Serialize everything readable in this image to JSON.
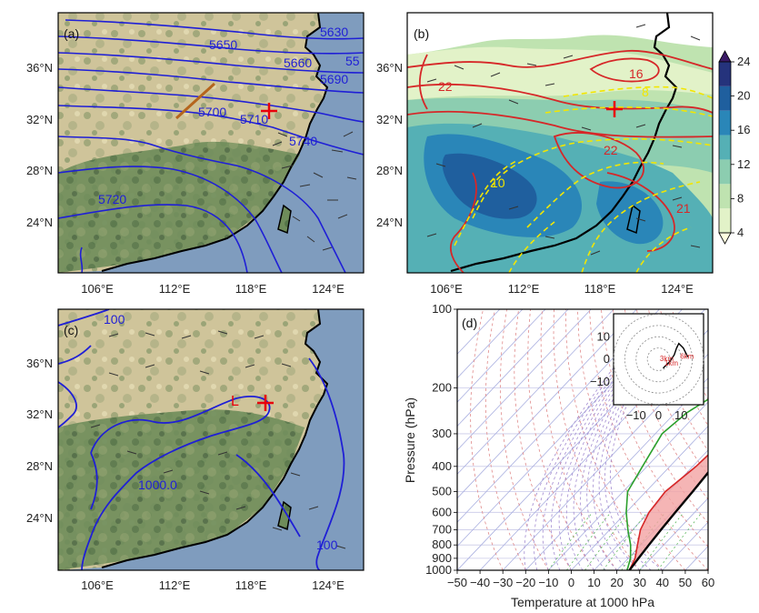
{
  "chart_data": [
    {
      "panel": "(a)",
      "type": "map",
      "lat_ticks": [
        "36°N",
        "32°N",
        "28°N",
        "24°N"
      ],
      "lon_ticks": [
        "106°E",
        "112°E",
        "118°E",
        "124°E"
      ],
      "contour_labels": [
        "5650",
        "5630",
        "5660",
        "5690",
        "5700",
        "5710",
        "5740",
        "5720",
        "55"
      ],
      "colors": {
        "contour": "#1f1fd6",
        "trough": "#b5651d",
        "marker": "#e8000b"
      }
    },
    {
      "panel": "(b)",
      "type": "map",
      "lat_ticks": [
        "36°N",
        "32°N",
        "28°N",
        "24°N"
      ],
      "lon_ticks": [
        "106°E",
        "112°E",
        "118°E",
        "124°E"
      ],
      "red_contour_labels": [
        "22",
        "16",
        "22",
        "21"
      ],
      "yellow_contour_labels": [
        "8",
        "10"
      ],
      "colorbar": {
        "ticks": [
          4,
          8,
          12,
          16,
          20,
          24
        ],
        "colors": [
          "#ffffe0",
          "#e2f2c8",
          "#bfe3b0",
          "#8ccdb0",
          "#55b0b5",
          "#2a86b8",
          "#1f5f9e",
          "#25337c",
          "#3a1a66"
        ]
      }
    },
    {
      "panel": "(c)",
      "type": "map",
      "lat_ticks": [
        "36°N",
        "32°N",
        "28°N",
        "24°N"
      ],
      "lon_ticks": [
        "106°E",
        "112°E",
        "118°E",
        "124°E"
      ],
      "contour_labels": [
        "100",
        "1000.0",
        "100"
      ],
      "low_label": "L"
    },
    {
      "panel": "(d)",
      "type": "skew-t",
      "xlabel": "Temperature at 1000 hPa",
      "ylabel": "Pressure (hPa)",
      "x_ticks": [
        -50,
        -40,
        -30,
        -20,
        -10,
        0,
        10,
        20,
        30,
        40,
        50,
        60
      ],
      "y_ticks": [
        100,
        200,
        300,
        400,
        500,
        600,
        700,
        800,
        900,
        1000
      ],
      "xlim": [
        -50,
        60
      ],
      "ylim": [
        1000,
        100
      ],
      "series": [
        {
          "values_p": [
            1000,
            900,
            800,
            700,
            600,
            500,
            400,
            300,
            200
          ],
          "values_t": [
            25.5,
            23,
            18.5,
            13.5,
            10,
            8.5,
            11.5,
            13,
            11.5
          ],
          "color": "#d62728"
        },
        {
          "values_p": [
            1000,
            900,
            800,
            700,
            600,
            500,
            400,
            300,
            200
          ],
          "values_t": [
            25.5,
            24.5,
            23.5,
            22.5,
            21.5,
            20.5,
            19,
            17,
            14.5
          ],
          "color": "#000000"
        },
        {
          "values_p": [
            1000,
            900,
            800,
            700,
            600,
            500,
            400,
            300,
            250,
            200
          ],
          "values_t": [
            24.5,
            21,
            15.5,
            8,
            0,
            -8,
            -12,
            -17,
            -15,
            -8
          ],
          "color": "#2ca02c"
        }
      ],
      "hodograph": {
        "ticks": [
          -10,
          0,
          10
        ],
        "height_labels": [
          "3km",
          "1km",
          "6km"
        ],
        "path_u": [
          2,
          3,
          5,
          7,
          8,
          9,
          11,
          13
        ],
        "path_v": [
          -4,
          -3,
          -1,
          2,
          5,
          7,
          5,
          1
        ],
        "color": "#d62728"
      }
    }
  ]
}
